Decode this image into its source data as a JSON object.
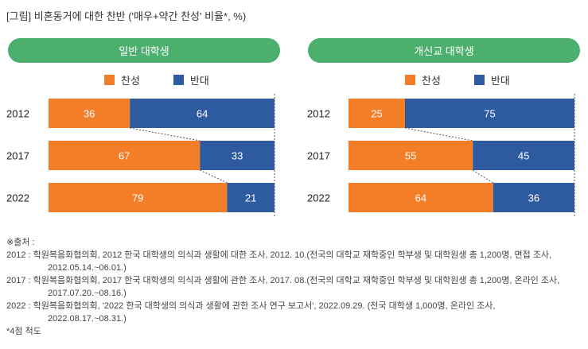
{
  "title": "[그림] 비혼동거에 대한 찬반 ('매우+약간 찬성' 비율*, %)",
  "colors": {
    "agree": "#f47d28",
    "disagree": "#2e5a9f",
    "header": "#4caf6e"
  },
  "legend": {
    "agree": "찬성",
    "disagree": "반대"
  },
  "chart_data": [
    {
      "type": "bar",
      "title": "일반 대학생",
      "categories": [
        "2012",
        "2017",
        "2022"
      ],
      "series": [
        {
          "name": "찬성",
          "values": [
            36,
            67,
            79
          ]
        },
        {
          "name": "반대",
          "values": [
            64,
            33,
            21
          ]
        }
      ],
      "xlim": [
        0,
        100
      ]
    },
    {
      "type": "bar",
      "title": "개신교 대학생",
      "categories": [
        "2012",
        "2017",
        "2022"
      ],
      "series": [
        {
          "name": "찬성",
          "values": [
            25,
            55,
            64
          ]
        },
        {
          "name": "반대",
          "values": [
            75,
            45,
            36
          ]
        }
      ],
      "xlim": [
        0,
        100
      ]
    }
  ],
  "footer": {
    "label": "※출처 :",
    "lines": [
      {
        "first": "2012 : 학원복음화협의회, 2012 한국 대학생의 의식과 생활에 대한 조사, 2012. 10.(전국의 대학교 재학중인 학부생 및 대학원생 총 1,200명, 면접 조사,",
        "second": "2012.05.14.~06.01.)"
      },
      {
        "first": "2017 : 학원복음화협의회, 2017 한국 대학생의 의식과 생활에 관한 조사, 2017. 08.(전국의 대학교 재학중인 학부생 및 대학원생 총 1,200명, 온라인 조사,",
        "second": "2017.07.20.~08.16.)"
      },
      {
        "first": "2022 : 학원복음화협의회, '2022 한국 대학생의 의식과 생활에 관한 조사 연구 보고서', 2022.09.29. (전국 대학생 1,000명, 온라인 조사,",
        "second": "2022.08.17.~08.31.)"
      }
    ],
    "note": "*4점 척도"
  }
}
